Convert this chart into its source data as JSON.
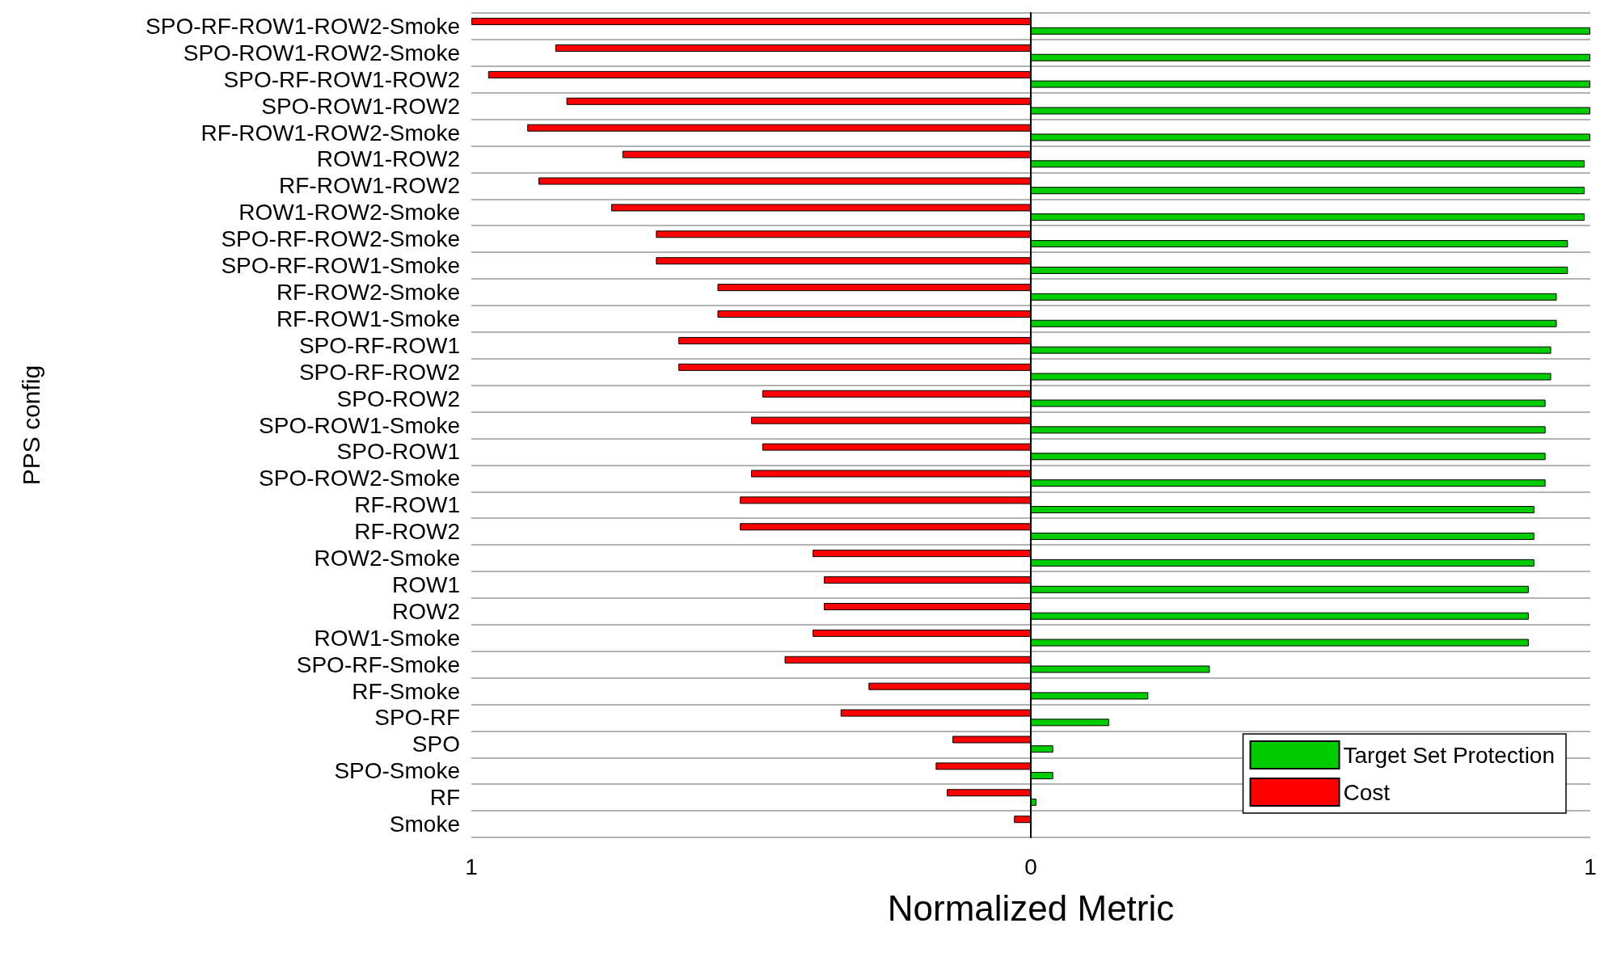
{
  "chart_data": {
    "type": "bar",
    "orientation": "horizontal",
    "xlabel": "Normalized Metric",
    "ylabel": "PPS config",
    "categories": [
      "SPO-RF-ROW1-ROW2-Smoke",
      "SPO-ROW1-ROW2-Smoke",
      "SPO-RF-ROW1-ROW2",
      "SPO-ROW1-ROW2",
      "RF-ROW1-ROW2-Smoke",
      "ROW1-ROW2",
      "RF-ROW1-ROW2",
      "ROW1-ROW2-Smoke",
      "SPO-RF-ROW2-Smoke",
      "SPO-RF-ROW1-Smoke",
      "RF-ROW2-Smoke",
      "RF-ROW1-Smoke",
      "SPO-RF-ROW1",
      "SPO-RF-ROW2",
      "SPO-ROW2",
      "SPO-ROW1-Smoke",
      "SPO-ROW1",
      "SPO-ROW2-Smoke",
      "RF-ROW1",
      "RF-ROW2",
      "ROW2-Smoke",
      "ROW1",
      "ROW2",
      "ROW1-Smoke",
      "SPO-RF-Smoke",
      "RF-Smoke",
      "SPO-RF",
      "SPO",
      "SPO-Smoke",
      "RF",
      "Smoke"
    ],
    "series": [
      {
        "name": "Cost",
        "color": "#ff0000",
        "values": [
          -1.0,
          -0.85,
          -0.97,
          -0.83,
          -0.9,
          -0.73,
          -0.88,
          -0.75,
          -0.67,
          -0.67,
          -0.56,
          -0.56,
          -0.63,
          -0.63,
          -0.48,
          -0.5,
          -0.48,
          -0.5,
          -0.52,
          -0.52,
          -0.39,
          -0.37,
          -0.37,
          -0.39,
          -0.44,
          -0.29,
          -0.34,
          -0.14,
          -0.17,
          -0.15,
          -0.03
        ]
      },
      {
        "name": "Target Set Protection",
        "color": "#00cc00",
        "values": [
          1.0,
          1.0,
          1.0,
          1.0,
          1.0,
          0.99,
          0.99,
          0.99,
          0.96,
          0.96,
          0.94,
          0.94,
          0.93,
          0.93,
          0.92,
          0.92,
          0.92,
          0.92,
          0.9,
          0.9,
          0.9,
          0.89,
          0.89,
          0.89,
          0.32,
          0.21,
          0.14,
          0.04,
          0.04,
          0.01,
          null
        ]
      }
    ],
    "xlim": [
      -1,
      1
    ],
    "xticks": [
      {
        "value": -1,
        "label": "1"
      },
      0,
      1
    ],
    "grid": "y",
    "legend": "bottom right"
  }
}
